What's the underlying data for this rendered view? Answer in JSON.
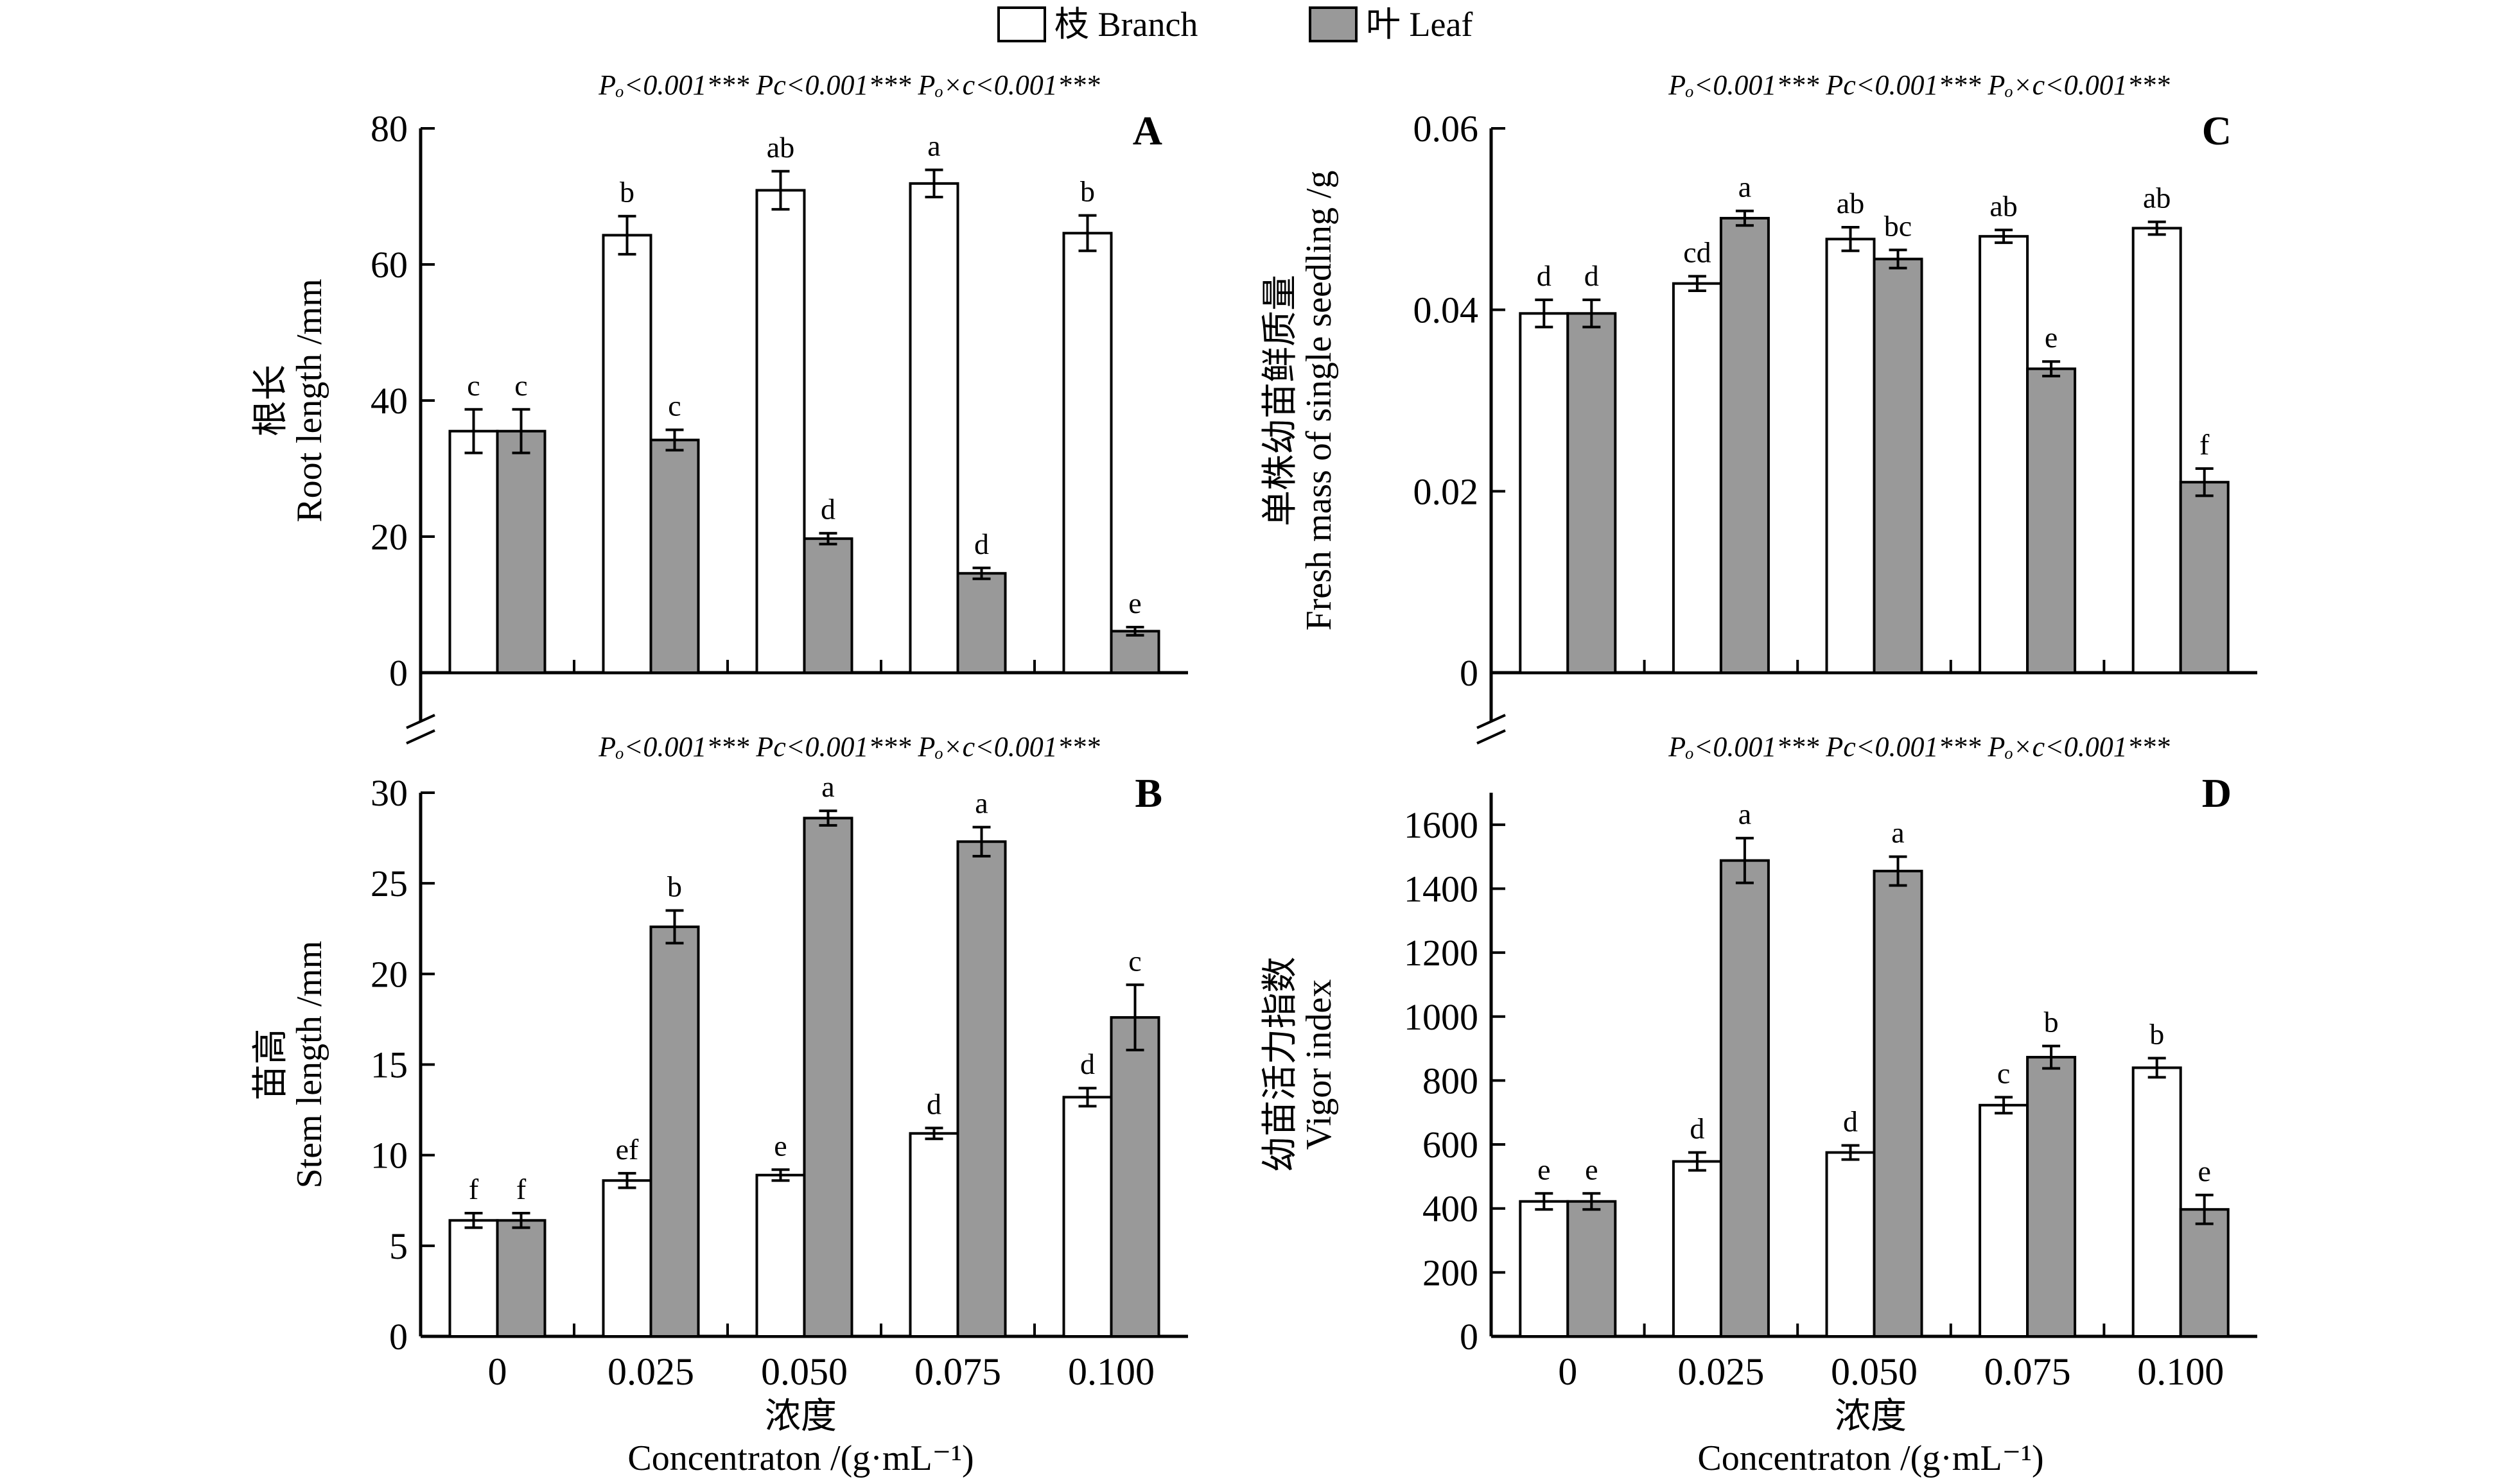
{
  "legend": {
    "items": [
      {
        "label": "枝 Branch",
        "fill": "#ffffff"
      },
      {
        "label": "叶 Leaf",
        "fill": "#999999"
      }
    ]
  },
  "categories": [
    "0",
    "0.025",
    "0.050",
    "0.075",
    "0.100"
  ],
  "x_axis": {
    "label_cn": "浓度",
    "label_en": "Concentraton /(g·mL⁻¹)"
  },
  "stats_label": {
    "p_o": "Pₒ<0.001***",
    "p_c": "Pc<0.001***",
    "p_oxc": "Pₒ×c<0.001***"
  },
  "colors": {
    "branch": "#ffffff",
    "leaf": "#999999",
    "stroke": "#000000"
  },
  "chart_data": [
    {
      "panel": "A",
      "type": "bar",
      "ylabel_cn": "根长",
      "ylabel_en": "Root length /mm",
      "ylim": [
        0,
        80
      ],
      "yticks": [
        0,
        20,
        40,
        60,
        80
      ],
      "ytick_labels": [
        "0",
        "20",
        "40",
        "60",
        "80"
      ],
      "axis_break": true,
      "categories": [
        "0",
        "0.025",
        "0.050",
        "0.075",
        "0.100"
      ],
      "series": [
        {
          "name": "枝 Branch",
          "values": [
            35.5,
            64.3,
            70.9,
            71.9,
            64.6
          ],
          "errors": [
            3.2,
            2.8,
            2.8,
            2.0,
            2.6
          ],
          "letters": [
            "c",
            "b",
            "ab",
            "a",
            "b"
          ]
        },
        {
          "name": "叶 Leaf",
          "values": [
            35.5,
            34.2,
            19.7,
            14.6,
            6.1
          ],
          "errors": [
            3.2,
            1.5,
            0.8,
            0.8,
            0.6
          ],
          "letters": [
            "c",
            "c",
            "d",
            "d",
            "e"
          ]
        }
      ]
    },
    {
      "panel": "B",
      "type": "bar",
      "ylabel_cn": "苗高",
      "ylabel_en": "Stem length /mm",
      "ylim": [
        0,
        30
      ],
      "yticks": [
        0,
        5,
        10,
        15,
        20,
        25,
        30
      ],
      "ytick_labels": [
        "0",
        "5",
        "10",
        "15",
        "20",
        "25",
        "30"
      ],
      "axis_break": false,
      "categories": [
        "0",
        "0.025",
        "0.050",
        "0.075",
        "0.100"
      ],
      "series": [
        {
          "name": "枝 Branch",
          "values": [
            6.4,
            8.6,
            8.9,
            11.2,
            13.2
          ],
          "errors": [
            0.4,
            0.4,
            0.3,
            0.3,
            0.5
          ],
          "letters": [
            "f",
            "ef",
            "e",
            "d",
            "d"
          ]
        },
        {
          "name": "叶 Leaf",
          "values": [
            6.4,
            22.6,
            28.6,
            27.3,
            17.6
          ],
          "errors": [
            0.4,
            0.9,
            0.4,
            0.8,
            1.8
          ],
          "letters": [
            "f",
            "b",
            "a",
            "a",
            "c"
          ]
        }
      ]
    },
    {
      "panel": "C",
      "type": "bar",
      "ylabel_cn": "单株幼苗鲜质量",
      "ylabel_en": "Fresh mass of single seedling /g",
      "ylim": [
        0,
        0.06
      ],
      "yticks": [
        0,
        0.02,
        0.04,
        0.06
      ],
      "ytick_labels": [
        "0",
        "0.02",
        "0.04",
        "0.06"
      ],
      "axis_break": true,
      "categories": [
        "0",
        "0.025",
        "0.050",
        "0.075",
        "0.100"
      ],
      "series": [
        {
          "name": "枝 Branch",
          "values": [
            0.0396,
            0.0429,
            0.0478,
            0.0481,
            0.049
          ],
          "errors": [
            0.0015,
            0.0008,
            0.0013,
            0.0007,
            0.0007
          ],
          "letters": [
            "d",
            "cd",
            "ab",
            "ab",
            "ab"
          ]
        },
        {
          "name": "叶 Leaf",
          "values": [
            0.0396,
            0.0501,
            0.0456,
            0.0335,
            0.021
          ],
          "errors": [
            0.0015,
            0.0008,
            0.001,
            0.0008,
            0.0015
          ],
          "letters": [
            "d",
            "a",
            "bc",
            "e",
            "f"
          ]
        }
      ]
    },
    {
      "panel": "D",
      "type": "bar",
      "ylabel_cn": "幼苗活力指数",
      "ylabel_en": "Vigor index",
      "ylim": [
        0,
        1700
      ],
      "yticks": [
        0,
        200,
        400,
        600,
        800,
        1000,
        1200,
        1400,
        1600
      ],
      "ytick_labels": [
        "0",
        "200",
        "400",
        "600",
        "800",
        "1000",
        "1200",
        "1400",
        "1600"
      ],
      "axis_break": false,
      "categories": [
        "0",
        "0.025",
        "0.050",
        "0.075",
        "0.100"
      ],
      "series": [
        {
          "name": "枝 Branch",
          "values": [
            422,
            547,
            575,
            723,
            840
          ],
          "errors": [
            25,
            28,
            22,
            25,
            30
          ],
          "letters": [
            "e",
            "d",
            "d",
            "c",
            "b"
          ]
        },
        {
          "name": "叶 Leaf",
          "values": [
            422,
            1488,
            1455,
            873,
            397
          ],
          "errors": [
            25,
            70,
            45,
            35,
            45
          ],
          "letters": [
            "e",
            "a",
            "a",
            "b",
            "e"
          ]
        }
      ]
    }
  ]
}
